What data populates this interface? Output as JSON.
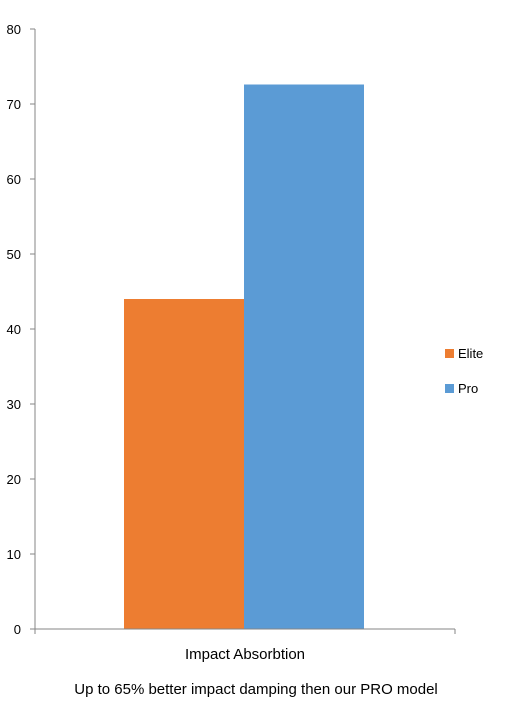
{
  "chart_data": {
    "type": "bar",
    "categories": [
      "Impact Absorbtion"
    ],
    "series": [
      {
        "name": "Elite",
        "values": [
          44
        ],
        "color": "#ED7D31"
      },
      {
        "name": "Pro",
        "values": [
          72.6
        ],
        "color": "#5B9BD5"
      }
    ],
    "title": "",
    "xlabel": "",
    "ylabel": "",
    "ylim": [
      0,
      80
    ],
    "yticks": [
      0,
      10,
      20,
      30,
      40,
      50,
      60,
      70,
      80
    ],
    "grid": false,
    "legend_position": "right"
  },
  "caption": "Up to 65% better impact damping then our PRO model"
}
